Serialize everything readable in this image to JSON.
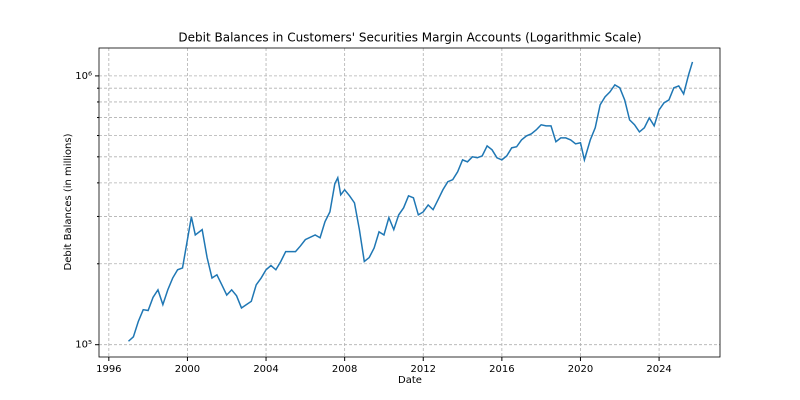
{
  "chart_data": {
    "type": "line",
    "title": "Debit Balances in Customers' Securities Margin Accounts (Logarithmic Scale)",
    "x_label": "Date",
    "y_label": "Debit Balances (in millions)",
    "x": [
      1997.0,
      1997.25,
      1997.5,
      1997.75,
      1998.0,
      1998.25,
      1998.5,
      1998.75,
      1999.0,
      1999.25,
      1999.5,
      1999.75,
      2000.0,
      2000.2,
      2000.4,
      2000.75,
      2001.0,
      2001.25,
      2001.5,
      2001.75,
      2002.0,
      2002.25,
      2002.5,
      2002.75,
      2003.0,
      2003.25,
      2003.5,
      2003.75,
      2004.0,
      2004.25,
      2004.5,
      2004.75,
      2005.0,
      2005.5,
      2005.75,
      2006.0,
      2006.5,
      2006.75,
      2007.0,
      2007.25,
      2007.5,
      2007.65,
      2007.8,
      2008.0,
      2008.25,
      2008.5,
      2008.75,
      2009.0,
      2009.25,
      2009.5,
      2009.75,
      2010.0,
      2010.25,
      2010.5,
      2010.75,
      2011.0,
      2011.25,
      2011.5,
      2011.75,
      2012.0,
      2012.25,
      2012.5,
      2012.75,
      2013.0,
      2013.25,
      2013.5,
      2013.75,
      2014.0,
      2014.25,
      2014.5,
      2014.75,
      2015.0,
      2015.25,
      2015.5,
      2015.75,
      2016.0,
      2016.25,
      2016.5,
      2016.75,
      2017.0,
      2017.25,
      2017.5,
      2017.75,
      2018.0,
      2018.25,
      2018.5,
      2018.75,
      2019.0,
      2019.25,
      2019.5,
      2019.75,
      2020.0,
      2020.2,
      2020.5,
      2020.75,
      2021.0,
      2021.25,
      2021.5,
      2021.75,
      2022.0,
      2022.25,
      2022.5,
      2022.75,
      2023.0,
      2023.25,
      2023.5,
      2023.75,
      2024.0,
      2024.25,
      2024.5,
      2024.75,
      2025.0,
      2025.25,
      2025.5,
      2025.7
    ],
    "series": [
      {
        "name": "Debit Balances",
        "color": "#1f77b4",
        "values": [
          103000,
          107000,
          122000,
          135000,
          134000,
          150000,
          160000,
          141000,
          160000,
          177000,
          190000,
          193000,
          246000,
          299000,
          256000,
          268000,
          211000,
          177000,
          182000,
          167000,
          153000,
          160000,
          152000,
          137000,
          141000,
          145000,
          167000,
          177000,
          190000,
          197000,
          190000,
          204000,
          222000,
          222000,
          233000,
          246000,
          256000,
          250000,
          287000,
          312000,
          397000,
          418000,
          361000,
          377000,
          358000,
          337000,
          268000,
          204000,
          211000,
          229000,
          263000,
          256000,
          297000,
          268000,
          304000,
          323000,
          358000,
          352000,
          304000,
          312000,
          331000,
          318000,
          346000,
          377000,
          404000,
          411000,
          440000,
          487000,
          479000,
          500000,
          496000,
          504000,
          549000,
          531000,
          496000,
          487000,
          504000,
          540000,
          545000,
          578000,
          598000,
          609000,
          630000,
          658000,
          652000,
          652000,
          569000,
          588000,
          588000,
          578000,
          559000,
          564000,
          487000,
          578000,
          641000,
          780000,
          836000,
          872000,
          926000,
          903000,
          814000,
          686000,
          658000,
          619000,
          641000,
          698000,
          652000,
          747000,
          794000,
          814000,
          903000,
          918000,
          857000,
          1009000,
          1127000
        ]
      }
    ],
    "xlim": [
      1995.5,
      2027.1
    ],
    "xticks": [
      1996,
      2000,
      2004,
      2008,
      2012,
      2016,
      2020,
      2024
    ],
    "ylim": [
      90000,
      1270000
    ],
    "ylog": true,
    "yticks": [
      {
        "value": 100000,
        "label": "10⁵"
      },
      {
        "value": 1000000,
        "label": "10⁶"
      }
    ],
    "yminor_ticks": [
      200000,
      300000,
      400000,
      500000,
      600000,
      700000,
      800000,
      900000
    ],
    "grid": true
  }
}
